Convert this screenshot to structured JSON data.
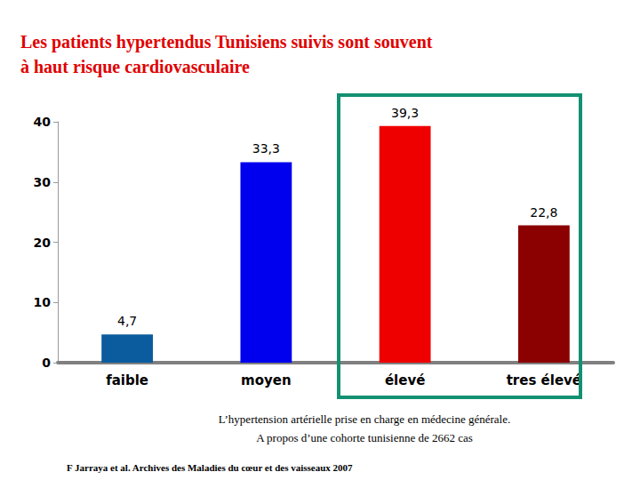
{
  "chart_data": {
    "type": "bar",
    "title": "Les patients hypertendus Tunisiens suivis sont souvent\nà haut risque cardiovasculaire",
    "categories": [
      "faible",
      "moyen",
      "élevé",
      "tres élevé"
    ],
    "values": [
      4.7,
      33.3,
      39.3,
      22.8
    ],
    "value_labels": [
      "4,7",
      "33,3",
      "39,3",
      "22,8"
    ],
    "colors": [
      "#0b5c9e",
      "#0000ee",
      "#ee0000",
      "#8b0000"
    ],
    "ylim": [
      0,
      40
    ],
    "yticks": [
      0,
      10,
      20,
      30,
      40
    ],
    "grid": false,
    "data_labels": true,
    "annotations": [
      "L’hypertension artérielle prise en charge en médecine générale.",
      "A propos d’une cohorte tunisienne de 2662 cas",
      "F Jarraya et al. Archives des Maladies du cœur et des vaisseaux 2007"
    ]
  }
}
